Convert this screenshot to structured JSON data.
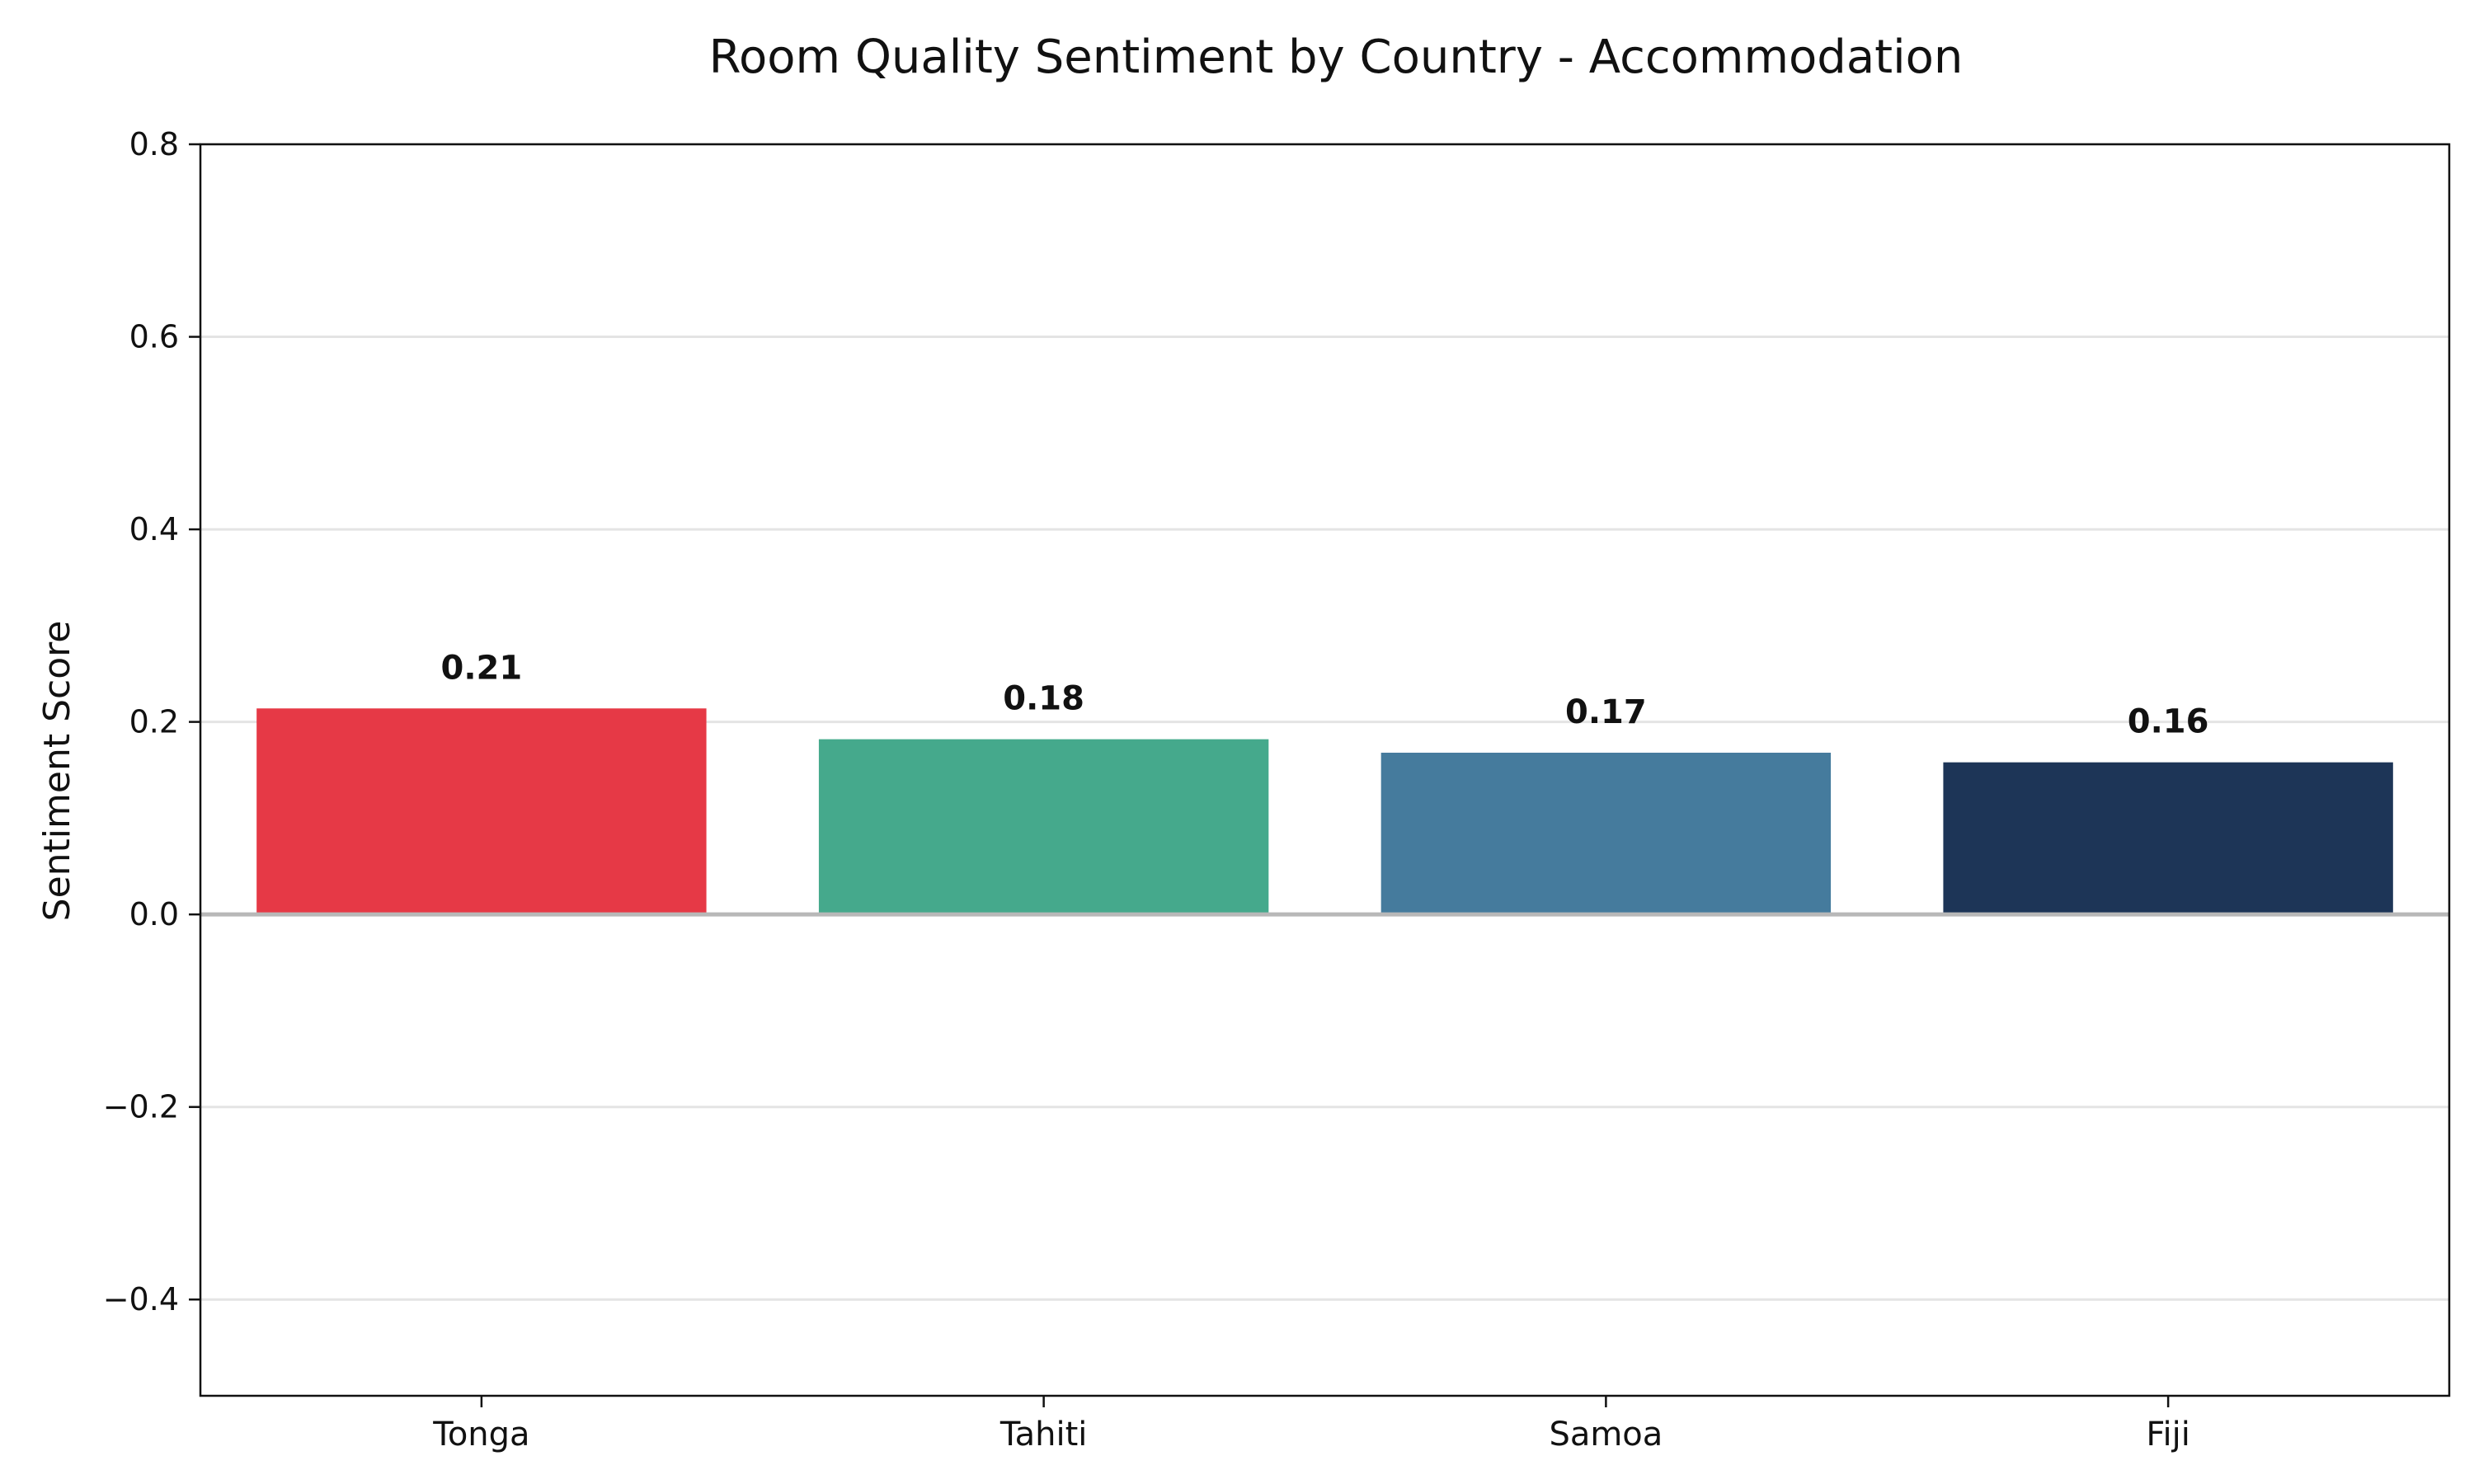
{
  "chart_data": {
    "type": "bar",
    "title": "Room Quality Sentiment by Country - Accommodation",
    "xlabel": "",
    "ylabel": "Sentiment Score",
    "categories": [
      "Tonga",
      "Tahiti",
      "Samoa",
      "Fiji"
    ],
    "values": [
      0.214,
      0.182,
      0.168,
      0.158
    ],
    "value_labels": [
      "0.21",
      "0.18",
      "0.17",
      "0.16"
    ],
    "colors": [
      "#e63946",
      "#45a98c",
      "#457b9d",
      "#1d3557"
    ],
    "ylim": [
      -0.5,
      0.8
    ],
    "yticks": [
      -0.4,
      -0.2,
      0.0,
      0.2,
      0.4,
      0.6,
      0.8
    ],
    "ytick_labels": [
      "−0.4",
      "−0.2",
      "0.0",
      "0.2",
      "0.4",
      "0.6",
      "0.8"
    ],
    "grid": "y",
    "legend": "none",
    "zero_line": true
  }
}
